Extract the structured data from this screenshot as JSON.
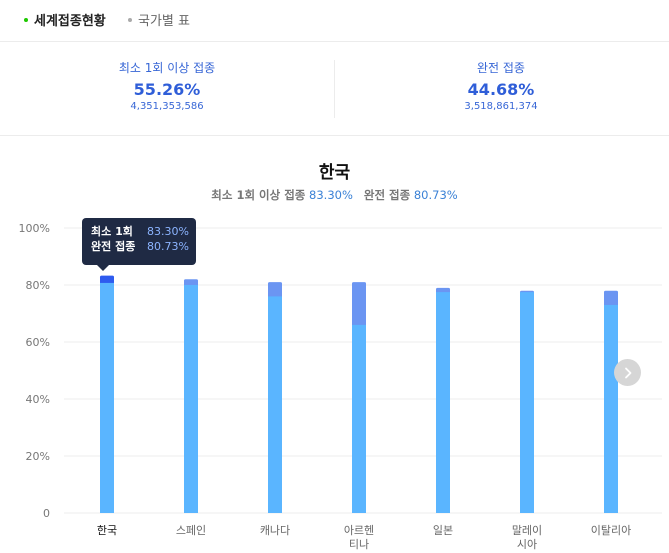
{
  "tabs": [
    {
      "label": "세계접종현황",
      "active": true
    },
    {
      "label": "국가별 표",
      "active": false
    }
  ],
  "summary": {
    "at_least_one": {
      "label": "최소 1회 이상 접종",
      "percent": "55.26%",
      "count": "4,351,353,586"
    },
    "full": {
      "label": "완전 접종",
      "percent": "44.68%",
      "count": "3,518,861,374"
    }
  },
  "selected": {
    "country": "한국",
    "at_least_one_label": "최소 1회 이상 접종",
    "at_least_one_value": "83.30%",
    "full_label": "완전 접종",
    "full_value": "80.73%"
  },
  "tooltip": {
    "at_least_one_label": "최소 1회",
    "at_least_one_value": "83.30%",
    "full_label": "완전 접종",
    "full_value": "80.73%"
  },
  "chart_data": {
    "type": "bar",
    "stacked": "overlay",
    "categories": [
      [
        "한국"
      ],
      [
        "스페인"
      ],
      [
        "캐나다"
      ],
      [
        "아르헨",
        "티나"
      ],
      [
        "일본"
      ],
      [
        "말레이",
        "시아"
      ],
      [
        "이탈리아"
      ]
    ],
    "series": [
      {
        "values": [
          83.3,
          82.0,
          81.0,
          81.0,
          79.0,
          78.0,
          78.0
        ],
        "color": "#6b95f2"
      },
      {
        "values": [
          80.73,
          80.0,
          76.0,
          66.0,
          77.5,
          77.5,
          73.0
        ],
        "color": "#5ab5ff"
      }
    ],
    "highlight_index": 0,
    "highlight_color": "#2e5bef",
    "ylim": [
      0,
      100
    ],
    "yticks": [
      "0",
      "20%",
      "40%",
      "60%",
      "80%",
      "100%"
    ],
    "grid": true
  }
}
